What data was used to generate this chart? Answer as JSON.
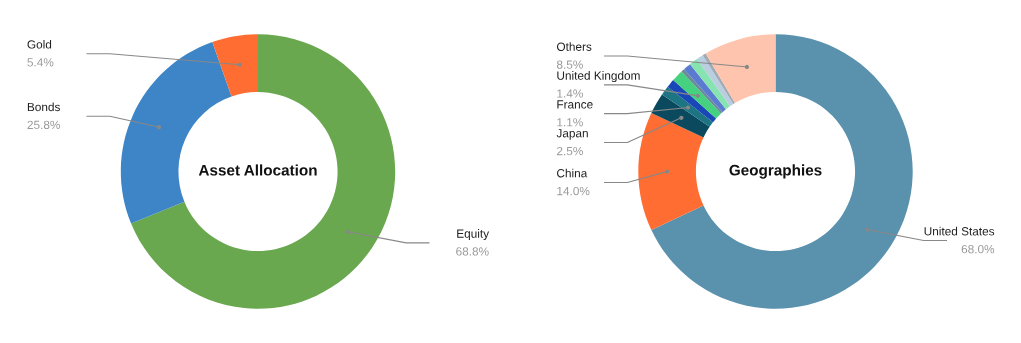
{
  "chart_data": [
    {
      "type": "donut",
      "title": "Asset Allocation",
      "categories": [
        "Equity",
        "Bonds",
        "Gold"
      ],
      "values": [
        68.8,
        25.8,
        5.4
      ],
      "colors": [
        "#6aa84f",
        "#3d85c6",
        "#ff6d33"
      ],
      "value_labels": [
        "68.8%",
        "25.8%",
        "5.4%"
      ]
    },
    {
      "type": "donut",
      "title": "Geographies",
      "categories": [
        "United States",
        "China",
        "Japan",
        "France",
        null,
        "United Kingdom",
        null,
        null,
        null,
        null,
        null,
        "Others"
      ],
      "values": [
        68.0,
        14.0,
        2.5,
        1.1,
        1.0,
        1.4,
        0.4,
        0.9,
        1.0,
        0.8,
        0.4,
        8.5
      ],
      "colors": [
        "#5a91ad",
        "#ff6d33",
        "#0b4a5e",
        "#1d7584",
        "#1a47b8",
        "#45d17f",
        "#6b8a9a",
        "#5b7bd0",
        "#87e3b0",
        "#b9cfe0",
        "#a0aab4",
        "#ffc4ad"
      ],
      "value_labels": [
        "68.0%",
        "14.0%",
        "2.5%",
        "1.1%",
        null,
        "1.4%",
        null,
        null,
        null,
        null,
        null,
        "8.5%"
      ]
    }
  ]
}
